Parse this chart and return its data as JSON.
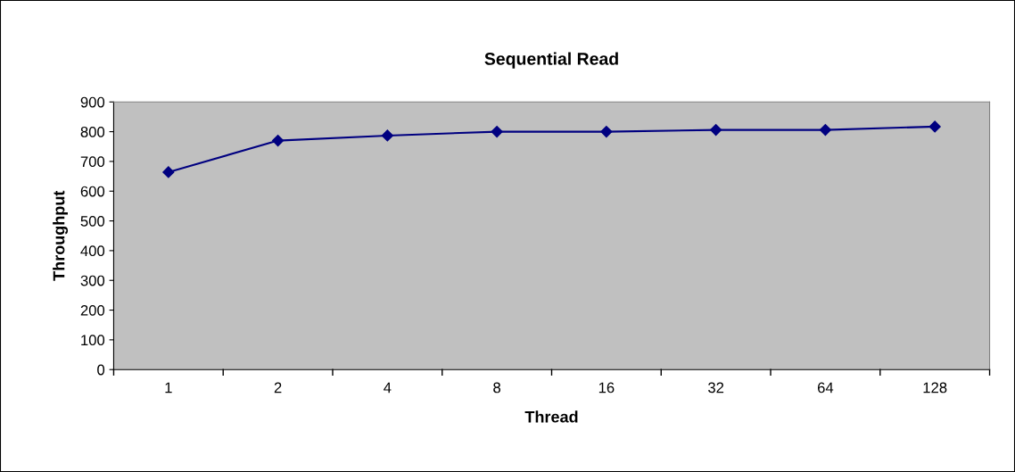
{
  "chart_data": {
    "type": "line",
    "title": "Sequential Read",
    "xlabel": "Thread",
    "ylabel": "Throughput",
    "categories": [
      "1",
      "2",
      "4",
      "8",
      "16",
      "32",
      "64",
      "128"
    ],
    "series": [
      {
        "color": "#000080",
        "values": [
          664,
          770,
          787,
          800,
          800,
          806,
          806,
          817
        ]
      }
    ],
    "ylim": [
      0,
      900
    ],
    "yticks": [
      0,
      100,
      200,
      300,
      400,
      500,
      600,
      700,
      800,
      900
    ],
    "grid": false,
    "legend": false,
    "marker": "diamond",
    "line_style": "solid"
  }
}
